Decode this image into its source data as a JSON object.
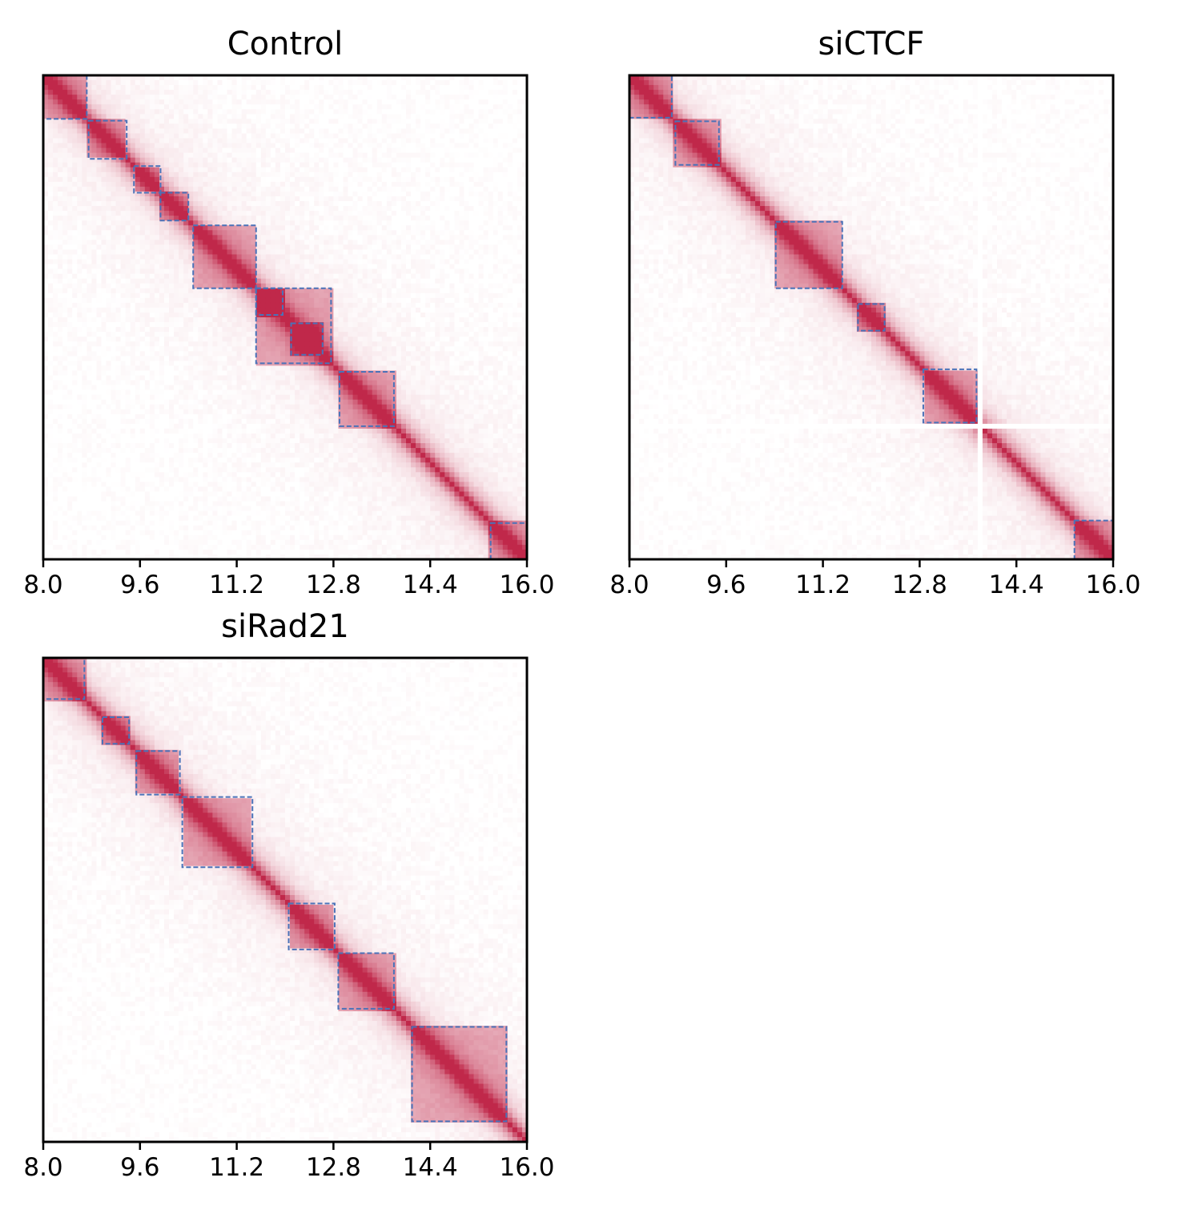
{
  "chart_data": [
    {
      "type": "heatmap",
      "title": "Control",
      "xlim": [
        8.0,
        16.0
      ],
      "ylim": [
        16.0,
        8.0
      ],
      "xticks": [
        "8.0",
        "9.6",
        "11.2",
        "12.8",
        "14.4",
        "16.0"
      ],
      "y_tick_labels_shown": false,
      "colormap": [
        "#ffffff",
        "#c0284a"
      ],
      "box_color": "#4a72b8",
      "box_style": "dashed",
      "domains": [
        {
          "start": 8.0,
          "end": 8.72
        },
        {
          "start": 8.75,
          "end": 9.38
        },
        {
          "start": 9.5,
          "end": 9.94
        },
        {
          "start": 9.94,
          "end": 10.4
        },
        {
          "start": 10.48,
          "end": 11.52
        },
        {
          "start": 11.52,
          "end": 11.96
        },
        {
          "start": 11.52,
          "end": 12.76
        },
        {
          "start": 12.1,
          "end": 12.62
        },
        {
          "start": 12.9,
          "end": 13.8
        },
        {
          "start": 15.4,
          "end": 16.0
        }
      ],
      "sparse_bins": []
    },
    {
      "type": "heatmap",
      "title": "siCTCF",
      "xlim": [
        8.0,
        16.0
      ],
      "ylim": [
        16.0,
        8.0
      ],
      "xticks": [
        "8.0",
        "9.6",
        "11.2",
        "12.8",
        "14.4",
        "16.0"
      ],
      "y_tick_labels_shown": false,
      "colormap": [
        "#ffffff",
        "#c0284a"
      ],
      "box_color": "#4a72b8",
      "box_style": "dashed",
      "domains": [
        {
          "start": 8.0,
          "end": 8.7
        },
        {
          "start": 8.76,
          "end": 9.48
        },
        {
          "start": 10.42,
          "end": 11.52
        },
        {
          "start": 11.78,
          "end": 12.22
        },
        {
          "start": 12.86,
          "end": 13.74
        },
        {
          "start": 15.36,
          "end": 16.0
        }
      ],
      "sparse_bins": [
        13.78
      ]
    },
    {
      "type": "heatmap",
      "title": "siRad21",
      "xlim": [
        8.0,
        16.0
      ],
      "ylim": [
        16.0,
        8.0
      ],
      "xticks": [
        "8.0",
        "9.6",
        "11.2",
        "12.8",
        "14.4",
        "16.0"
      ],
      "y_tick_labels_shown": false,
      "colormap": [
        "#ffffff",
        "#c0284a"
      ],
      "box_color": "#4a72b8",
      "box_style": "dashed",
      "domains": [
        {
          "start": 8.0,
          "end": 8.68
        },
        {
          "start": 8.98,
          "end": 9.42
        },
        {
          "start": 9.54,
          "end": 10.26
        },
        {
          "start": 10.3,
          "end": 11.46
        },
        {
          "start": 12.06,
          "end": 12.82
        },
        {
          "start": 12.88,
          "end": 13.8
        },
        {
          "start": 14.1,
          "end": 15.66
        }
      ],
      "sparse_bins": []
    }
  ]
}
